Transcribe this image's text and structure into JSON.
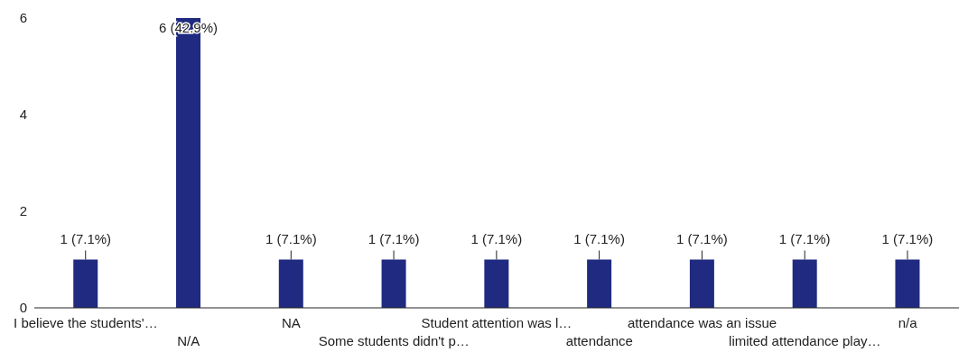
{
  "chart_data": {
    "type": "bar",
    "categories": [
      "I believe the students'…",
      "N/A",
      "NA",
      "Some students didn't p…",
      "Student attention was l…",
      "attendance",
      "attendance was an issue",
      "limited attendance play…",
      "n/a"
    ],
    "values": [
      1,
      6,
      1,
      1,
      1,
      1,
      1,
      1,
      1
    ],
    "value_labels": [
      "1 (7.1%)",
      "6 (42.9%)",
      "1 (7.1%)",
      "1 (7.1%)",
      "1 (7.1%)",
      "1 (7.1%)",
      "1 (7.1%)",
      "1 (7.1%)",
      "1 (7.1%)"
    ],
    "color": "#1f2a80",
    "ylim": [
      0,
      6
    ],
    "yticks": [
      0,
      2,
      4,
      6
    ],
    "grid": false,
    "legend": false
  }
}
